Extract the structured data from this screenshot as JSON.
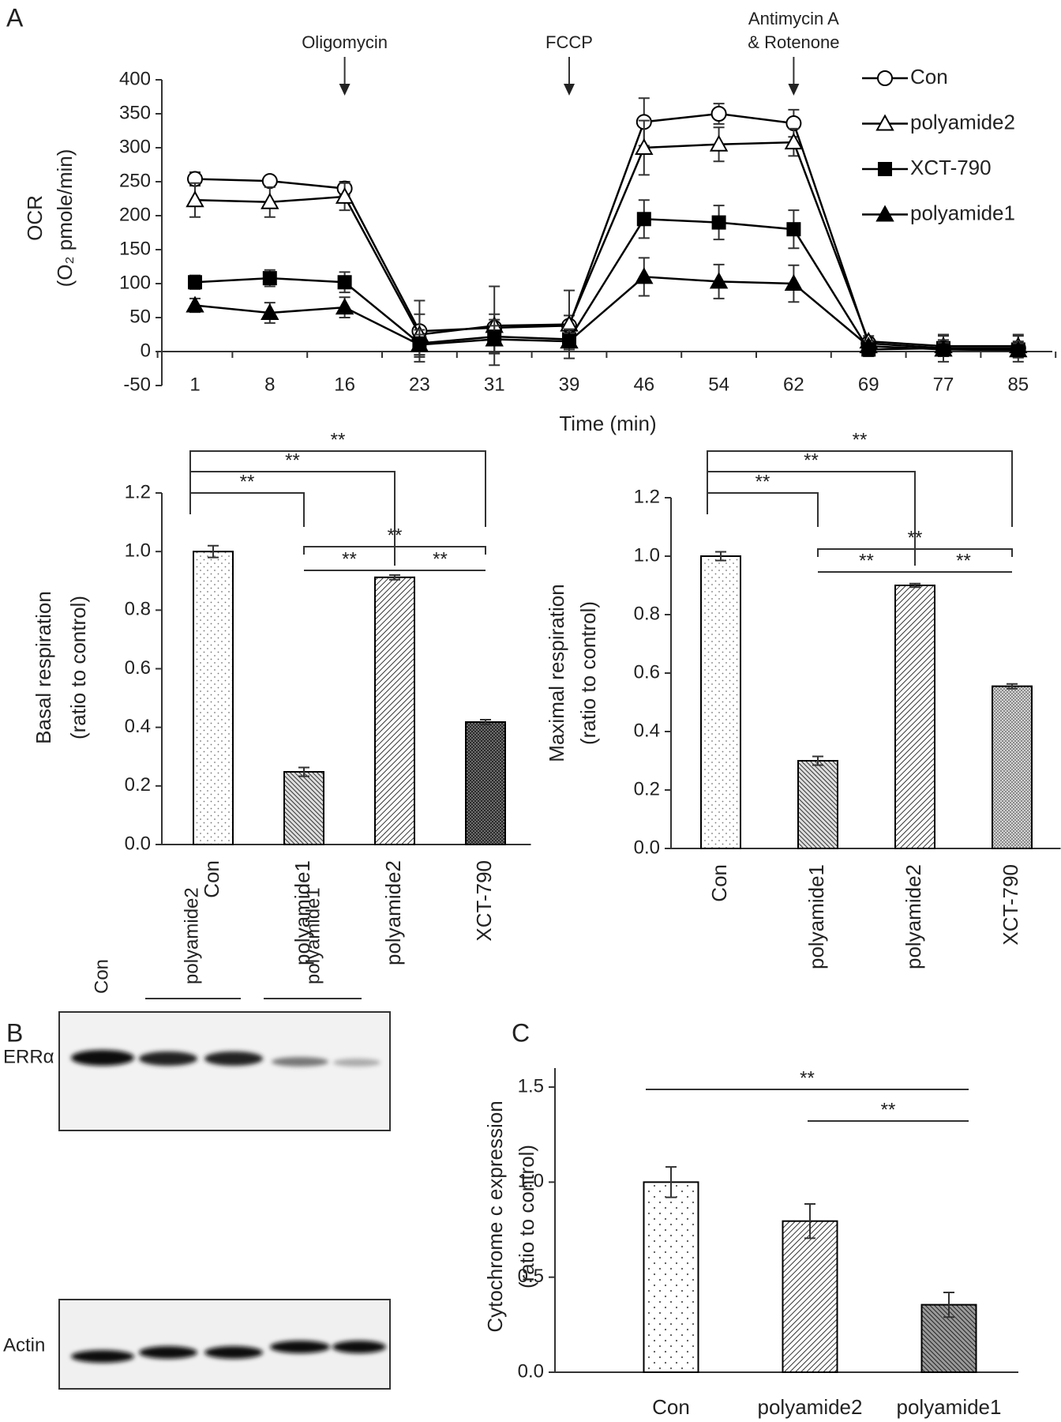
{
  "panel_labels": [
    "A",
    "B",
    "C"
  ],
  "chart_data": [
    {
      "type": "line",
      "x_label": "Time (min)",
      "y_label": [
        "OCR",
        "(O₂ pmole/min)"
      ],
      "categories": [
        "1",
        "8",
        "16",
        "23",
        "31",
        "39",
        "46",
        "54",
        "62",
        "69",
        "77",
        "85"
      ],
      "series": [
        {
          "name": "Con",
          "color": "#000000",
          "marker": "circle",
          "filled": false,
          "values": [
            254,
            251,
            240,
            30,
            35,
            38,
            338,
            350,
            336,
            12,
            5,
            5
          ],
          "errors": [
            10,
            6,
            10,
            45,
            20,
            15,
            35,
            15,
            20,
            8,
            20,
            20
          ]
        },
        {
          "name": "polyamide2",
          "color": "#000000",
          "marker": "triangle",
          "filled": false,
          "values": [
            223,
            220,
            228,
            25,
            38,
            40,
            300,
            305,
            308,
            15,
            8,
            8
          ],
          "errors": [
            25,
            22,
            20,
            30,
            58,
            50,
            40,
            25,
            20,
            8,
            15,
            15
          ]
        },
        {
          "name": "XCT-790",
          "color": "#000000",
          "marker": "square",
          "filled": true,
          "values": [
            102,
            108,
            102,
            12,
            22,
            18,
            195,
            190,
            180,
            3,
            5,
            3
          ],
          "errors": [
            10,
            12,
            15,
            20,
            25,
            15,
            28,
            25,
            28,
            10,
            12,
            12
          ]
        },
        {
          "name": "polyamide1",
          "color": "#000000",
          "marker": "triangle",
          "filled": true,
          "values": [
            68,
            57,
            65,
            10,
            18,
            15,
            110,
            103,
            100,
            8,
            3,
            2
          ],
          "errors": [
            10,
            15,
            15,
            15,
            20,
            12,
            28,
            25,
            27,
            8,
            10,
            10
          ]
        }
      ],
      "ylim": [
        -50,
        400
      ],
      "yticks": [
        -50,
        0,
        50,
        100,
        150,
        200,
        250,
        300,
        350,
        400
      ],
      "annotations": [
        {
          "label": [
            "Oligomycin"
          ],
          "at": "16"
        },
        {
          "label": [
            "FCCP"
          ],
          "at": "39"
        },
        {
          "label": [
            "Antimycin A",
            "& Rotenone"
          ],
          "at": "62"
        }
      ],
      "legend": "upper right"
    },
    {
      "type": "bar",
      "y_label": [
        "Basal respiration",
        "(ratio to control)"
      ],
      "categories": [
        "Con",
        "polyamide1",
        "polyamide2",
        "XCT-790"
      ],
      "values": [
        1.0,
        0.248,
        0.912,
        0.418
      ],
      "errors": [
        0.02,
        0.015,
        0.008,
        0.008
      ],
      "fills": [
        "dots",
        "hatch-back",
        "hatch",
        "cross-dark"
      ],
      "color": "#000000",
      "ylim": [
        0,
        1.2
      ],
      "yticks": [
        {
          "value": 0,
          "label": "0.0"
        },
        0.2,
        0.4,
        0.6,
        0.8,
        {
          "value": 1,
          "label": "1.0"
        },
        1.2
      ],
      "label_rotation": -90,
      "comparisons": [
        {
          "from": "Con",
          "to": "polyamide1",
          "label": "**"
        },
        {
          "from": "Con",
          "to": "polyamide2",
          "label": "**"
        },
        {
          "from": "Con",
          "to": "XCT-790",
          "label": "**"
        },
        {
          "from": "polyamide1",
          "to": "XCT-790",
          "label": "**"
        },
        {
          "from": "polyamide1",
          "to": "polyamide2",
          "label": "**"
        },
        {
          "from": "polyamide2",
          "to": "XCT-790",
          "label": "**"
        }
      ]
    },
    {
      "type": "bar",
      "y_label": [
        "Maximal respiration",
        "(ratio to control)"
      ],
      "categories": [
        "Con",
        "polyamide1",
        "polyamide2",
        "XCT-790"
      ],
      "values": [
        1.0,
        0.3,
        0.9,
        0.555
      ],
      "errors": [
        0.015,
        0.015,
        0.006,
        0.008
      ],
      "fills": [
        "dots",
        "hatch-back",
        "hatch",
        "cross-light"
      ],
      "color": "#000000",
      "ylim": [
        0,
        1.2
      ],
      "yticks": [
        {
          "value": 0,
          "label": "0.0"
        },
        0.2,
        0.4,
        0.6,
        0.8,
        {
          "value": 1,
          "label": "1.0"
        },
        1.2
      ],
      "label_rotation": -90,
      "comparisons": [
        {
          "from": "Con",
          "to": "polyamide1",
          "label": "**"
        },
        {
          "from": "Con",
          "to": "polyamide2",
          "label": "**"
        },
        {
          "from": "Con",
          "to": "XCT-790",
          "label": "**"
        },
        {
          "from": "polyamide1",
          "to": "XCT-790",
          "label": "**"
        },
        {
          "from": "polyamide1",
          "to": "polyamide2",
          "label": "**"
        },
        {
          "from": "polyamide2",
          "to": "XCT-790",
          "label": "**"
        }
      ]
    },
    {
      "type": "bar",
      "y_label": [
        "Cytochrome c expression",
        "(ratio to control)"
      ],
      "categories": [
        "Con",
        "polyamide2",
        "polyamide1"
      ],
      "values": [
        1.0,
        0.795,
        0.355
      ],
      "errors": [
        0.08,
        0.09,
        0.065
      ],
      "fills": [
        "dots-sparse",
        "hatch",
        "hatch-back-dark"
      ],
      "color": "#000000",
      "ylim": [
        0,
        1.6
      ],
      "yticks": [
        {
          "value": 0,
          "label": "0.0"
        },
        0.5,
        {
          "value": 1,
          "label": "1.0"
        },
        1.5
      ],
      "label_rotation": 0,
      "comparisons": [
        {
          "from": "Con",
          "to": "polyamide1",
          "label": "**"
        },
        {
          "from": "polyamide2",
          "to": "polyamide1",
          "label": "**"
        }
      ]
    }
  ],
  "blot": {
    "lanes": [
      "Con",
      "polyamide2",
      "polyamide1"
    ],
    "rows": [
      "ERRα",
      "Actin"
    ]
  }
}
